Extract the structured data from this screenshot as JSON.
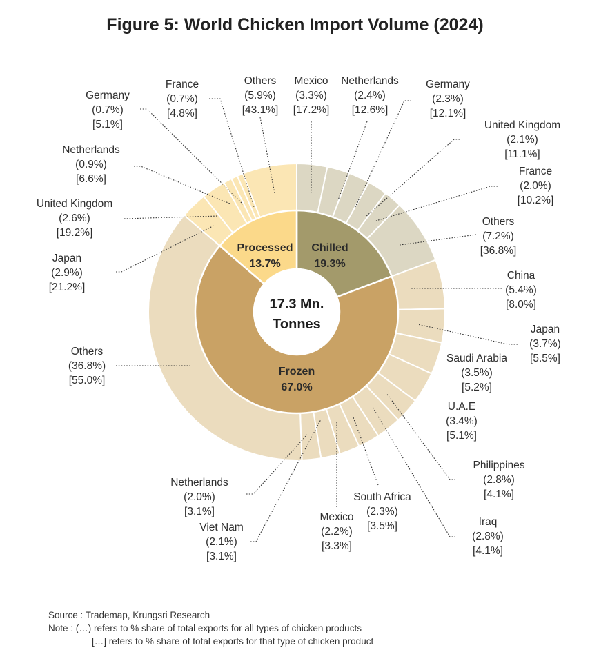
{
  "chart_data": {
    "type": "pie",
    "title": "Figure 5: World Chicken Import Volume (2024)",
    "center_label": [
      "17.3 Mn.",
      "Tonnes"
    ],
    "inner": [
      {
        "name": "Chilled",
        "value": 19.3,
        "label": "19.3%",
        "color": "#a39a6b"
      },
      {
        "name": "Frozen",
        "value": 67.0,
        "label": "67.0%",
        "color": "#c9a265"
      },
      {
        "name": "Processed",
        "value": 13.7,
        "label": "13.7%",
        "color": "#fbd98a"
      }
    ],
    "outer": {
      "Chilled": {
        "color": "#dcd7c3",
        "segments": [
          {
            "name": "Mexico",
            "total_share": "(3.3%)",
            "type_share": "[17.2%]",
            "value": 17.2
          },
          {
            "name": "Netherlands",
            "total_share": "(2.4%)",
            "type_share": "[12.6%]",
            "value": 12.6
          },
          {
            "name": "Germany",
            "total_share": "(2.3%)",
            "type_share": "[12.1%]",
            "value": 12.1
          },
          {
            "name": "United Kingdom",
            "total_share": "(2.1%)",
            "type_share": "[11.1%]",
            "value": 11.1
          },
          {
            "name": "France",
            "total_share": "(2.0%)",
            "type_share": "[10.2%]",
            "value": 10.2
          },
          {
            "name": "Others",
            "total_share": "(7.2%)",
            "type_share": "[36.8%]",
            "value": 36.8
          }
        ]
      },
      "Frozen": {
        "color": "#ebdcbe",
        "segments": [
          {
            "name": "China",
            "total_share": "(5.4%)",
            "type_share": "[8.0%]",
            "value": 8.0
          },
          {
            "name": "Japan",
            "total_share": "(3.7%)",
            "type_share": "[5.5%]",
            "value": 5.5
          },
          {
            "name": "Saudi Arabia",
            "total_share": "(3.5%)",
            "type_share": "[5.2%]",
            "value": 5.2
          },
          {
            "name": "U.A.E",
            "total_share": "(3.4%)",
            "type_share": "[5.1%]",
            "value": 5.1
          },
          {
            "name": "Philippines",
            "total_share": "(2.8%)",
            "type_share": "[4.1%]",
            "value": 4.1
          },
          {
            "name": "Iraq",
            "total_share": "(2.8%)",
            "type_share": "[4.1%]",
            "value": 4.1
          },
          {
            "name": "South Africa",
            "total_share": "(2.3%)",
            "type_share": "[3.5%]",
            "value": 3.5
          },
          {
            "name": "Mexico",
            "total_share": "(2.2%)",
            "type_share": "[3.3%]",
            "value": 3.3
          },
          {
            "name": "Viet Nam",
            "total_share": "(2.1%)",
            "type_share": "[3.1%]",
            "value": 3.1
          },
          {
            "name": "Netherlands",
            "total_share": "(2.0%)",
            "type_share": "[3.1%]",
            "value": 3.1
          },
          {
            "name": "Others",
            "total_share": "(36.8%)",
            "type_share": "[55.0%]",
            "value": 55.0
          }
        ]
      },
      "Processed": {
        "color": "#fbe6b4",
        "segments": [
          {
            "name": "Japan",
            "total_share": "(2.9%)",
            "type_share": "[21.2%]",
            "value": 21.2
          },
          {
            "name": "United Kingdom",
            "total_share": "(2.6%)",
            "type_share": "[19.2%]",
            "value": 19.2
          },
          {
            "name": "Netherlands",
            "total_share": "(0.9%)",
            "type_share": "[6.6%]",
            "value": 6.6
          },
          {
            "name": "Germany",
            "total_share": "(0.7%)",
            "type_share": "[5.1%]",
            "value": 5.1
          },
          {
            "name": "France",
            "total_share": "(0.7%)",
            "type_share": "[4.8%]",
            "value": 4.8
          },
          {
            "name": "Others",
            "total_share": "(5.9%)",
            "type_share": "[43.1%]",
            "value": 43.1
          }
        ]
      }
    }
  },
  "notes": {
    "source": "Source : Trademap, Krungsri Research",
    "note1": "Note : (…) refers to % share of total exports for all types of chicken products",
    "note2": "[…] refers to % share of total exports for that type of chicken product"
  }
}
